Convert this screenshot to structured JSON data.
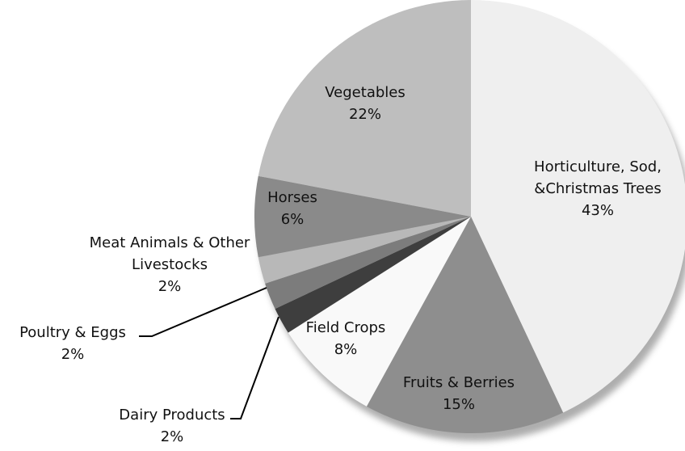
{
  "chart_data": {
    "type": "pie",
    "categories": [
      "Horticulture, Sod, &Christmas Trees",
      "Fruits & Berries",
      "Field Crops",
      "Dairy Products",
      "Poultry & Eggs",
      "Meat Animals & Other Livestocks",
      "Horses",
      "Vegetables"
    ],
    "values": [
      43,
      15,
      8,
      2,
      2,
      2,
      6,
      22
    ],
    "value_labels": [
      "43%",
      "15%",
      "8%",
      "2%",
      "2%",
      "2%",
      "6%",
      "22%"
    ],
    "colors": [
      "#efefef",
      "#8e8e8e",
      "#f9f9f9",
      "#3e3e3e",
      "#7c7c7c",
      "#b8b8b8",
      "#8a8a8a",
      "#bebebe"
    ]
  }
}
